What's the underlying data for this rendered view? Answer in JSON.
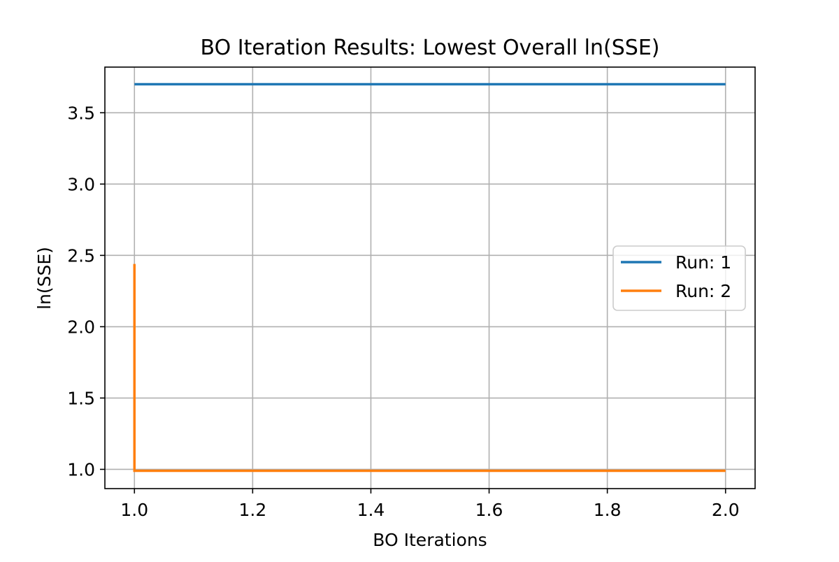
{
  "chart_data": {
    "type": "line",
    "title": "BO Iteration Results: Lowest Overall ln(SSE)",
    "xlabel": "BO Iterations",
    "ylabel": "ln(SSE)",
    "xlim": [
      0.95,
      2.05
    ],
    "ylim": [
      0.865,
      3.82
    ],
    "xticks": [
      1.0,
      1.2,
      1.4,
      1.6,
      1.8,
      2.0
    ],
    "xtick_labels": [
      "1.0",
      "1.2",
      "1.4",
      "1.6",
      "1.8",
      "2.0"
    ],
    "yticks": [
      1.0,
      1.5,
      2.0,
      2.5,
      3.0,
      3.5
    ],
    "ytick_labels": [
      "1.0",
      "1.5",
      "2.0",
      "2.5",
      "3.0",
      "3.5"
    ],
    "grid": true,
    "legend_position": "center-right",
    "series": [
      {
        "name": "Run: 1",
        "color": "#1f77b4",
        "points": [
          [
            1.0,
            3.7
          ],
          [
            2.0,
            3.7
          ]
        ]
      },
      {
        "name": "Run: 2",
        "color": "#ff7f0e",
        "points": [
          [
            1.0,
            2.44
          ],
          [
            1.0,
            0.99
          ],
          [
            2.0,
            0.99
          ]
        ]
      }
    ]
  }
}
